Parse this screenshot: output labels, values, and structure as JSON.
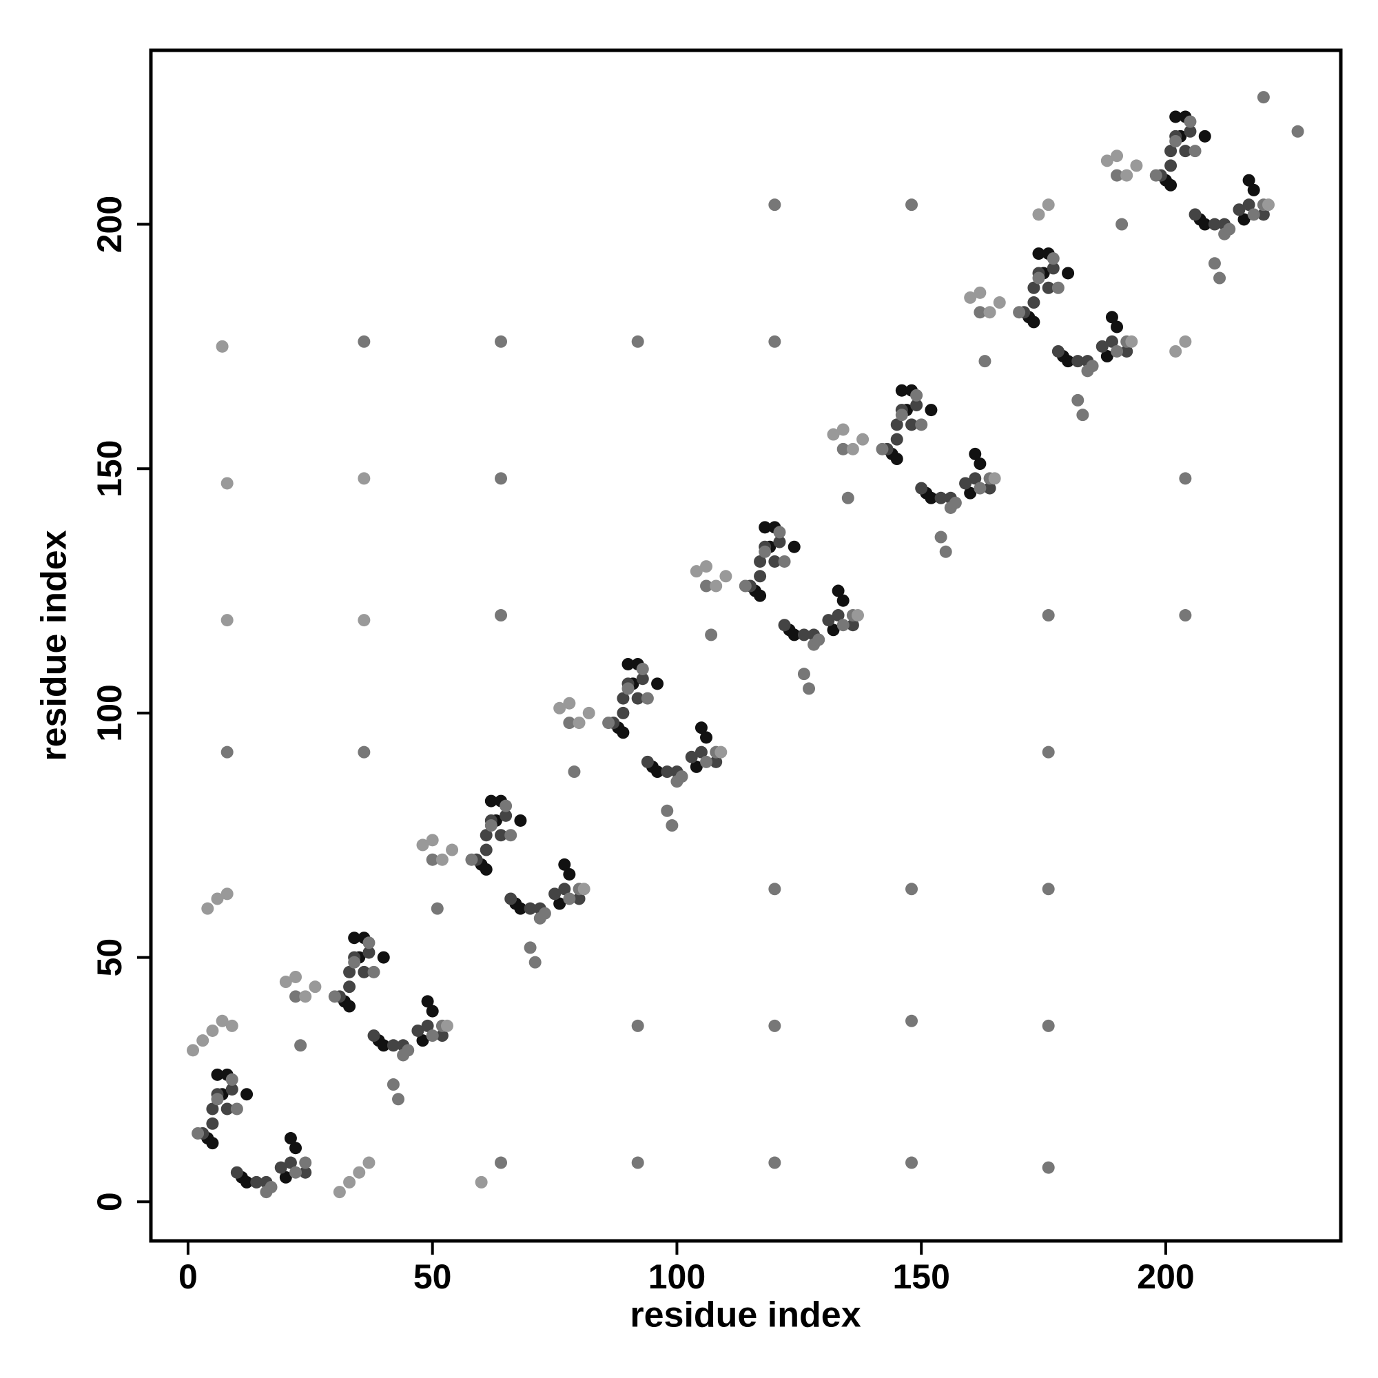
{
  "chart_data": {
    "type": "scatter",
    "xlabel": "residue index",
    "ylabel": "residue index",
    "xlim": [
      -7.6,
      235.8
    ],
    "ylim": [
      -8,
      235.6
    ],
    "xticks": [
      0,
      50,
      100,
      150,
      200
    ],
    "yticks": [
      0,
      50,
      100,
      150,
      200
    ],
    "series": [
      {
        "color": "#111111",
        "x": [
          4,
          5,
          6,
          8,
          12,
          7,
          11,
          12,
          21,
          22,
          20,
          32,
          33,
          34,
          36,
          40,
          35,
          39,
          40,
          49,
          50,
          48,
          60,
          61,
          62,
          64,
          68,
          63,
          67,
          68,
          77,
          78,
          76,
          88,
          89,
          90,
          92,
          96,
          91,
          95,
          96,
          105,
          106,
          104,
          116,
          117,
          118,
          120,
          124,
          119,
          123,
          124,
          133,
          134,
          132,
          144,
          145,
          146,
          148,
          152,
          147,
          151,
          152,
          161,
          162,
          160,
          172,
          173,
          174,
          176,
          180,
          175,
          179,
          180,
          189,
          190,
          188,
          200,
          201,
          202,
          204,
          208,
          203,
          207,
          208,
          217,
          218,
          216
        ],
        "y": [
          13,
          12,
          26,
          26,
          22,
          22,
          5,
          4,
          13,
          11,
          5,
          41,
          40,
          54,
          54,
          50,
          50,
          33,
          32,
          41,
          39,
          33,
          69,
          68,
          82,
          82,
          78,
          78,
          61,
          60,
          69,
          67,
          61,
          97,
          96,
          110,
          110,
          106,
          106,
          89,
          88,
          97,
          95,
          89,
          125,
          124,
          138,
          138,
          134,
          134,
          117,
          116,
          125,
          123,
          117,
          153,
          152,
          166,
          166,
          162,
          162,
          145,
          144,
          153,
          151,
          145,
          181,
          180,
          194,
          194,
          190,
          190,
          173,
          172,
          181,
          179,
          173,
          209,
          208,
          222,
          222,
          218,
          218,
          201,
          200,
          209,
          207,
          201
        ]
      },
      {
        "color": "#444444",
        "x": [
          3,
          5,
          5,
          6,
          9,
          8,
          10,
          14,
          16,
          19,
          21,
          24,
          31,
          33,
          33,
          34,
          37,
          36,
          38,
          42,
          44,
          47,
          49,
          52,
          59,
          61,
          61,
          62,
          65,
          64,
          66,
          70,
          72,
          75,
          77,
          80,
          87,
          89,
          89,
          90,
          93,
          92,
          94,
          98,
          100,
          103,
          105,
          108,
          115,
          117,
          117,
          118,
          121,
          120,
          122,
          126,
          128,
          131,
          133,
          136,
          143,
          145,
          145,
          146,
          149,
          148,
          150,
          154,
          156,
          159,
          161,
          164,
          171,
          173,
          173,
          174,
          177,
          176,
          178,
          182,
          184,
          187,
          189,
          192,
          199,
          201,
          201,
          202,
          205,
          204,
          206,
          210,
          212,
          215,
          217,
          220
        ],
        "y": [
          14,
          16,
          19,
          22,
          23,
          19,
          6,
          4,
          4,
          7,
          8,
          6,
          42,
          44,
          47,
          50,
          51,
          47,
          34,
          32,
          32,
          35,
          36,
          34,
          70,
          72,
          75,
          78,
          79,
          75,
          62,
          60,
          60,
          63,
          64,
          62,
          98,
          100,
          103,
          106,
          107,
          103,
          90,
          88,
          88,
          91,
          92,
          90,
          126,
          128,
          131,
          134,
          135,
          131,
          118,
          116,
          116,
          119,
          120,
          118,
          154,
          156,
          159,
          162,
          163,
          159,
          146,
          144,
          144,
          147,
          148,
          146,
          182,
          184,
          187,
          190,
          191,
          187,
          174,
          172,
          172,
          175,
          176,
          174,
          210,
          212,
          215,
          218,
          219,
          215,
          202,
          200,
          200,
          203,
          204,
          202
        ]
      },
      {
        "color": "#777777",
        "x": [
          2,
          6,
          9,
          10,
          16,
          17,
          22,
          24,
          30,
          34,
          37,
          38,
          44,
          45,
          50,
          52,
          58,
          62,
          65,
          66,
          72,
          73,
          78,
          80,
          86,
          90,
          93,
          94,
          100,
          101,
          106,
          108,
          114,
          118,
          121,
          122,
          128,
          129,
          134,
          136,
          142,
          146,
          149,
          150,
          156,
          157,
          162,
          164,
          170,
          174,
          177,
          178,
          184,
          185,
          190,
          192,
          198,
          202,
          205,
          206,
          212,
          213,
          218,
          220,
          22,
          23,
          42,
          43,
          50,
          51,
          70,
          71,
          78,
          79,
          98,
          99,
          106,
          107,
          126,
          127,
          134,
          135,
          154,
          155,
          162,
          163,
          182,
          183,
          190,
          191,
          210,
          211,
          36,
          64,
          92,
          120,
          64,
          204,
          64,
          176,
          204,
          8,
          36,
          176,
          120,
          148,
          176,
          92,
          120,
          148,
          176,
          64,
          92,
          120,
          148,
          176,
          120,
          148,
          220,
          227
        ],
        "y": [
          14,
          21,
          25,
          19,
          2,
          3,
          6,
          8,
          42,
          49,
          53,
          47,
          30,
          31,
          34,
          36,
          70,
          77,
          81,
          75,
          58,
          59,
          62,
          64,
          98,
          105,
          109,
          103,
          86,
          87,
          90,
          92,
          126,
          133,
          137,
          131,
          114,
          115,
          118,
          120,
          154,
          161,
          165,
          159,
          142,
          143,
          146,
          148,
          182,
          189,
          193,
          187,
          170,
          171,
          174,
          176,
          210,
          217,
          221,
          215,
          198,
          199,
          202,
          204,
          42,
          32,
          24,
          21,
          70,
          60,
          52,
          49,
          98,
          88,
          80,
          77,
          126,
          116,
          108,
          105,
          154,
          144,
          136,
          133,
          182,
          172,
          164,
          161,
          210,
          200,
          192,
          189,
          176,
          176,
          176,
          176,
          148,
          148,
          120,
          120,
          120,
          92,
          92,
          92,
          64,
          64,
          64,
          36,
          36,
          37,
          36,
          8,
          8,
          8,
          8,
          7,
          204,
          204,
          226,
          219
        ]
      },
      {
        "color": "#999999",
        "x": [
          20,
          22,
          24,
          26,
          53,
          48,
          50,
          52,
          54,
          81,
          76,
          78,
          80,
          82,
          109,
          104,
          106,
          108,
          110,
          137,
          132,
          134,
          136,
          138,
          165,
          160,
          162,
          164,
          166,
          193,
          188,
          190,
          192,
          194,
          221,
          1,
          3,
          5,
          7,
          9,
          31,
          33,
          35,
          37,
          4,
          6,
          8,
          7,
          8,
          36,
          8,
          36,
          60,
          174,
          176,
          202,
          204
        ],
        "y": [
          45,
          46,
          42,
          44,
          36,
          73,
          74,
          70,
          72,
          64,
          101,
          102,
          98,
          100,
          92,
          129,
          130,
          126,
          128,
          120,
          157,
          158,
          154,
          156,
          148,
          185,
          186,
          182,
          184,
          176,
          213,
          214,
          210,
          212,
          204,
          31,
          33,
          35,
          37,
          36,
          2,
          4,
          6,
          8,
          60,
          62,
          63,
          175,
          147,
          148,
          119,
          119,
          4,
          202,
          204,
          174,
          176
        ]
      }
    ]
  }
}
